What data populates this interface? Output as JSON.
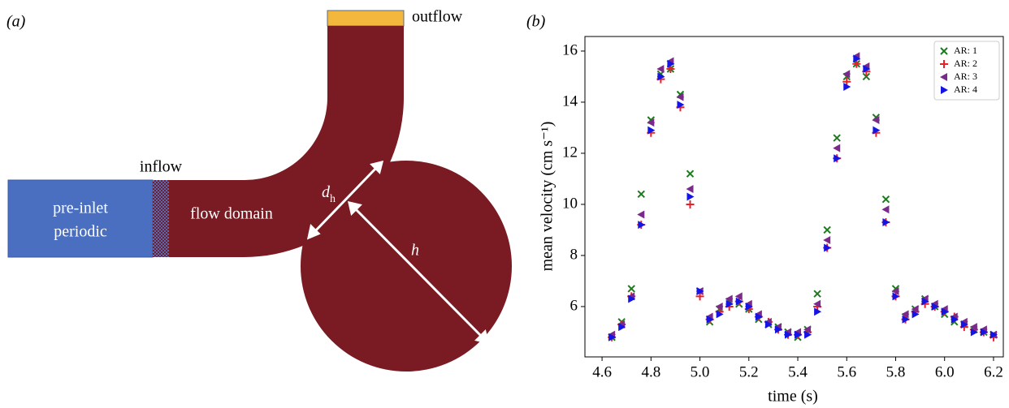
{
  "diagram": {
    "label": "(a)",
    "outflow": "outflow",
    "inflow": "inflow",
    "preinlet": [
      "pre-inlet",
      "periodic"
    ],
    "domain": "flow domain",
    "dh": {
      "main": "d",
      "sub": "h"
    },
    "h": "h"
  },
  "chart_data": {
    "type": "scatter",
    "panel_label": "(b)",
    "xlabel": "time (s)",
    "ylabel": "mean velocity (cm s⁻¹)",
    "x": [
      4.64,
      4.68,
      4.72,
      4.76,
      4.8,
      4.84,
      4.88,
      4.92,
      4.96,
      5,
      5.04,
      5.08,
      5.12,
      5.16,
      5.2,
      5.24,
      5.28,
      5.32,
      5.36,
      5.4,
      5.44,
      5.48,
      5.52,
      5.56,
      5.6,
      5.64,
      5.68,
      5.72,
      5.76,
      5.8,
      5.84,
      5.88,
      5.92,
      5.96,
      6,
      6.04,
      6.08,
      6.12,
      6.16,
      6.2
    ],
    "series": [
      {
        "name": "AR: 1",
        "color": "#1f7a1f",
        "marker": "x",
        "values": [
          4.8,
          5.4,
          6.7,
          10.4,
          13.3,
          15.1,
          15.3,
          14.3,
          11.2,
          6.6,
          5.4,
          5.9,
          6.2,
          6.1,
          5.9,
          5.5,
          5.3,
          5.2,
          5.0,
          4.8,
          5.1,
          6.5,
          9.0,
          12.6,
          15.0,
          15.5,
          15.0,
          13.4,
          10.2,
          6.7,
          5.6,
          5.9,
          6.3,
          6.0,
          5.7,
          5.4,
          5.3,
          5.1,
          5.0,
          4.9
        ]
      },
      {
        "name": "AR: 2",
        "color": "#e8202a",
        "marker": "plus",
        "values": [
          4.8,
          5.3,
          6.4,
          9.2,
          12.8,
          14.9,
          15.3,
          13.8,
          10.0,
          6.4,
          5.5,
          5.8,
          6.0,
          6.2,
          5.9,
          5.6,
          5.4,
          5.1,
          4.9,
          4.9,
          5.0,
          6.0,
          8.3,
          11.8,
          14.8,
          15.5,
          15.2,
          12.8,
          9.3,
          6.4,
          5.5,
          5.8,
          6.1,
          6.0,
          5.8,
          5.6,
          5.2,
          5.1,
          5.0,
          4.8
        ]
      },
      {
        "name": "AR: 3",
        "color": "#7a2a8a",
        "marker": "tri-left",
        "values": [
          4.9,
          5.3,
          6.4,
          9.6,
          13.2,
          15.3,
          15.6,
          14.2,
          10.6,
          6.6,
          5.6,
          6.0,
          6.3,
          6.4,
          6.1,
          5.7,
          5.4,
          5.2,
          5.0,
          5.0,
          5.1,
          6.1,
          8.6,
          12.2,
          15.1,
          15.8,
          15.4,
          13.3,
          9.8,
          6.6,
          5.7,
          5.9,
          6.3,
          6.1,
          5.9,
          5.6,
          5.4,
          5.2,
          5.1,
          4.9
        ]
      },
      {
        "name": "AR: 4",
        "color": "#1414e6",
        "marker": "tri-right",
        "values": [
          4.8,
          5.2,
          6.3,
          9.2,
          12.9,
          15.0,
          15.5,
          13.9,
          10.3,
          6.6,
          5.5,
          5.7,
          6.1,
          6.2,
          6.0,
          5.6,
          5.3,
          5.1,
          4.9,
          4.9,
          4.9,
          5.8,
          8.3,
          11.8,
          14.6,
          15.7,
          15.3,
          12.9,
          9.3,
          6.4,
          5.5,
          5.7,
          6.2,
          6.0,
          5.8,
          5.5,
          5.3,
          5.0,
          5.0,
          4.9
        ]
      }
    ],
    "xlim": [
      4.53,
      6.24
    ],
    "ylim": [
      4.03,
      16.57
    ],
    "xticks": [
      4.6,
      4.8,
      {
        "value": 5,
        "label": "5.0"
      },
      5.2,
      5.4,
      5.6,
      5.8,
      {
        "value": 6,
        "label": "6.0"
      },
      6.2
    ],
    "yticks": [
      6,
      8,
      10,
      12,
      14,
      16
    ],
    "grid": false,
    "legend": "upper right"
  }
}
